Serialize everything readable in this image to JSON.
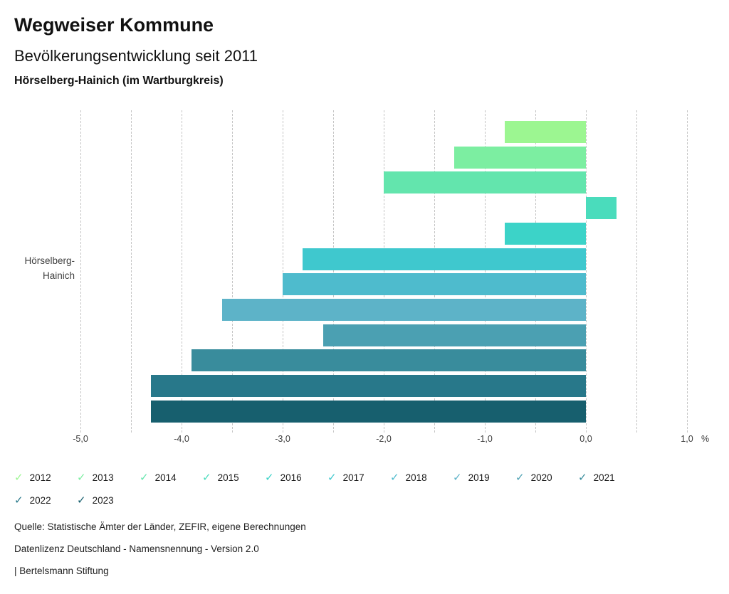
{
  "header": {
    "title": "Wegweiser Kommune",
    "subtitle": "Bevölkerungsentwicklung seit 2011",
    "region": "Hörselberg-Hainich (im Wartburgkreis)"
  },
  "chart_data": {
    "type": "bar",
    "orientation": "horizontal",
    "title": "Bevölkerungsentwicklung seit 2011",
    "region": "Hörselberg-Hainich (im Wartburgkreis)",
    "category": "Hörselberg-Hainich",
    "category_label_lines": [
      "Hörselberg-",
      "Hainich"
    ],
    "unit": "%",
    "xlim": [
      -5.0,
      1.0
    ],
    "gridline_step": 0.5,
    "grid": true,
    "legend_position": "bottom",
    "x_ticks": [
      {
        "value": -5,
        "label": "-5,0"
      },
      {
        "value": -4,
        "label": "-4,0"
      },
      {
        "value": -3,
        "label": "-3,0"
      },
      {
        "value": -2,
        "label": "-2,0"
      },
      {
        "value": -1,
        "label": "-1,0"
      },
      {
        "value": 0,
        "label": "0,0"
      },
      {
        "value": 1,
        "label": "1,0"
      }
    ],
    "series": [
      {
        "name": "2012",
        "value": -0.8,
        "color": "#9CF691"
      },
      {
        "name": "2013",
        "value": -1.3,
        "color": "#7CEEA1"
      },
      {
        "name": "2014",
        "value": -2.0,
        "color": "#63E5AD"
      },
      {
        "name": "2015",
        "value": 0.3,
        "color": "#4ADCBC"
      },
      {
        "name": "2016",
        "value": -0.8,
        "color": "#3CD3C8"
      },
      {
        "name": "2017",
        "value": -2.8,
        "color": "#3FC8CE"
      },
      {
        "name": "2018",
        "value": -3.0,
        "color": "#4EBBCD"
      },
      {
        "name": "2019",
        "value": -3.6,
        "color": "#5DB3C8"
      },
      {
        "name": "2020",
        "value": -2.6,
        "color": "#4BA0B2"
      },
      {
        "name": "2021",
        "value": -3.9,
        "color": "#398C9C"
      },
      {
        "name": "2022",
        "value": -4.3,
        "color": "#28788A"
      },
      {
        "name": "2023",
        "value": -4.3,
        "color": "#175F6E"
      }
    ]
  },
  "legend": {
    "check_icon": "✓"
  },
  "footer": {
    "source": "Quelle: Statistische Ämter der Länder, ZEFIR, eigene Berechnungen",
    "license": "Datenlizenz Deutschland - Namensnennung - Version 2.0",
    "attribution": "| Bertelsmann Stiftung"
  }
}
